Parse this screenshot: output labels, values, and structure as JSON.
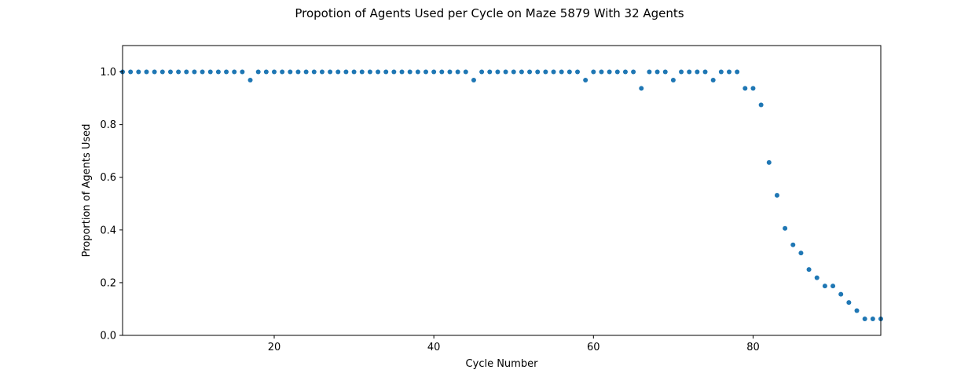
{
  "chart_data": {
    "type": "scatter",
    "title": "Propotion of Agents Used per Cycle on Maze 5879 With 32 Agents",
    "xlabel": "Cycle Number",
    "ylabel": "Proportion of Agents Used",
    "xlim": [
      1,
      96
    ],
    "ylim": [
      0,
      1.1
    ],
    "xticks": [
      20,
      40,
      60,
      80
    ],
    "yticks": [
      0.0,
      0.2,
      0.4,
      0.6,
      0.8,
      1.0
    ],
    "ytick_labels": [
      "0.0",
      "0.2",
      "0.4",
      "0.6",
      "0.8",
      "1.0"
    ],
    "grid": false,
    "color": "#1f77b4",
    "x": [
      1,
      2,
      3,
      4,
      5,
      6,
      7,
      8,
      9,
      10,
      11,
      12,
      13,
      14,
      15,
      16,
      17,
      18,
      19,
      20,
      21,
      22,
      23,
      24,
      25,
      26,
      27,
      28,
      29,
      30,
      31,
      32,
      33,
      34,
      35,
      36,
      37,
      38,
      39,
      40,
      41,
      42,
      43,
      44,
      45,
      46,
      47,
      48,
      49,
      50,
      51,
      52,
      53,
      54,
      55,
      56,
      57,
      58,
      59,
      60,
      61,
      62,
      63,
      64,
      65,
      66,
      67,
      68,
      69,
      70,
      71,
      72,
      73,
      74,
      75,
      76,
      77,
      78,
      79,
      80,
      81,
      82,
      83,
      84,
      85,
      86,
      87,
      88,
      89,
      90,
      91,
      92,
      93,
      94,
      95,
      96
    ],
    "y": [
      1,
      1,
      1,
      1,
      1,
      1,
      1,
      1,
      1,
      1,
      1,
      1,
      1,
      1,
      1,
      1,
      0.96875,
      1,
      1,
      1,
      1,
      1,
      1,
      1,
      1,
      1,
      1,
      1,
      1,
      1,
      1,
      1,
      1,
      1,
      1,
      1,
      1,
      1,
      1,
      1,
      1,
      1,
      1,
      1,
      0.96875,
      1,
      1,
      1,
      1,
      1,
      1,
      1,
      1,
      1,
      1,
      1,
      1,
      1,
      0.96875,
      1,
      1,
      1,
      1,
      1,
      1,
      0.9375,
      1,
      1,
      1,
      0.96875,
      1,
      1,
      1,
      1,
      0.96875,
      1,
      1,
      1,
      0.9375,
      0.9375,
      0.875,
      0.65625,
      0.53125,
      0.40625,
      0.34375,
      0.3125,
      0.25,
      0.21875,
      0.1875,
      0.1875,
      0.15625,
      0.125,
      0.09375,
      0.0625,
      0.0625,
      0.0625
    ]
  }
}
